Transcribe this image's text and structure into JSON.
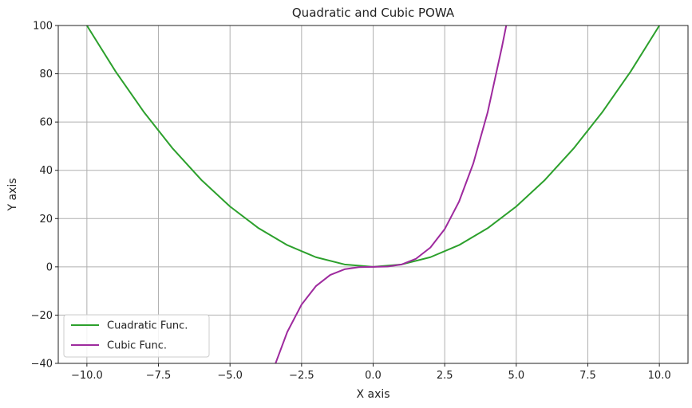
{
  "chart_data": {
    "type": "line",
    "title": "Quadratic and Cubic POWA",
    "xlabel": "X axis",
    "ylabel": "Y axis",
    "xlim": [
      -11,
      11
    ],
    "ylim": [
      -40,
      100
    ],
    "xticks": [
      -10,
      -7.5,
      -5,
      -2.5,
      0,
      2.5,
      5,
      7.5,
      10
    ],
    "xtick_labels": [
      "−10.0",
      "−7.5",
      "−5.0",
      "−2.5",
      "0.0",
      "2.5",
      "5.0",
      "7.5",
      "10.0"
    ],
    "yticks": [
      -40,
      -20,
      0,
      20,
      40,
      60,
      80,
      100
    ],
    "ytick_labels": [
      "−40",
      "−20",
      "0",
      "20",
      "40",
      "60",
      "80",
      "100"
    ],
    "grid": true,
    "legend_position": "lower-left",
    "series": [
      {
        "name": "Cuadratic Func.",
        "color": "#2ca02c",
        "x": [
          -10,
          -9,
          -8,
          -7,
          -6,
          -5,
          -4,
          -3,
          -2,
          -1,
          0,
          1,
          2,
          3,
          4,
          5,
          6,
          7,
          8,
          9,
          10
        ],
        "y": [
          100,
          81,
          64,
          49,
          36,
          25,
          16,
          9,
          4,
          1,
          0,
          1,
          4,
          9,
          16,
          25,
          36,
          49,
          64,
          81,
          100
        ]
      },
      {
        "name": "Cubic Func.",
        "color": "#9e2a9e",
        "x": [
          -3.5,
          -3,
          -2.5,
          -2,
          -1.5,
          -1,
          -0.5,
          0,
          0.5,
          1,
          1.5,
          2,
          2.5,
          3,
          3.5,
          4,
          4.5,
          4.65
        ],
        "y": [
          -42.875,
          -27,
          -15.625,
          -8,
          -3.375,
          -1,
          -0.125,
          0,
          0.125,
          1,
          3.375,
          8,
          15.625,
          27,
          42.875,
          64,
          91.125,
          100
        ]
      }
    ]
  }
}
